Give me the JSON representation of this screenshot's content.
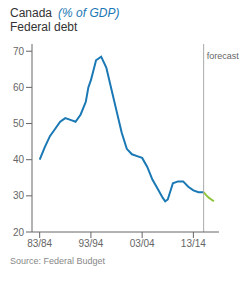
{
  "chart_data": {
    "type": "line",
    "title": "Canada",
    "ylabel": "(% of GDP)",
    "subtitle": "Federal debt",
    "series": [
      {
        "color": "#1a78b4",
        "x": [
          1983.5,
          1984.5,
          1985.5,
          1986.5,
          1987.5,
          1988.5,
          1989.5,
          1990.5,
          1991.5,
          1992.5,
          1993.0,
          1993.5,
          1994.5,
          1995.5,
          1996.5,
          1997.5,
          1998.5,
          1999.5,
          2000.5,
          2001.5,
          2002.5,
          2003.5,
          2004.5,
          2005.5,
          2006.5,
          2007.5,
          2008.0,
          2008.5,
          2009.5,
          2010.5,
          2011.5,
          2012.5,
          2013.5,
          2014.5,
          2015.5
        ],
        "values": [
          40.0,
          43.5,
          46.5,
          48.5,
          50.5,
          51.5,
          51.0,
          50.5,
          52.5,
          56.0,
          60.0,
          62.0,
          67.5,
          68.5,
          65.5,
          59.5,
          53.5,
          47.5,
          43.0,
          41.5,
          41.0,
          40.5,
          38.0,
          34.5,
          32.0,
          29.5,
          28.5,
          29.0,
          33.5,
          34.0,
          34.0,
          32.5,
          31.5,
          31.0,
          31.0
        ]
      },
      {
        "color": "#8fc43a",
        "x": [
          2015.5,
          2016.0,
          2016.5,
          2017.0,
          2017.5
        ],
        "values": [
          31.0,
          30.2,
          29.5,
          29.0,
          28.5
        ]
      }
    ],
    "xlim": [
      1982.0,
      2018.5
    ],
    "xticks": [
      {
        "value": 1983.5,
        "label": "83/84"
      },
      {
        "value": 1993.5,
        "label": "93/94"
      },
      {
        "value": 2003.5,
        "label": "03/04"
      },
      {
        "value": 2013.5,
        "label": "13/14"
      }
    ],
    "ylim": [
      20,
      72
    ],
    "yticks": [
      20,
      30,
      40,
      50,
      60,
      70
    ],
    "grid": false,
    "annotations": [
      {
        "text": "forecast",
        "x": 2015.5,
        "y": 69.5,
        "color": "#aaaaaa"
      },
      {
        "text": "Source: Federal Budget"
      }
    ]
  }
}
